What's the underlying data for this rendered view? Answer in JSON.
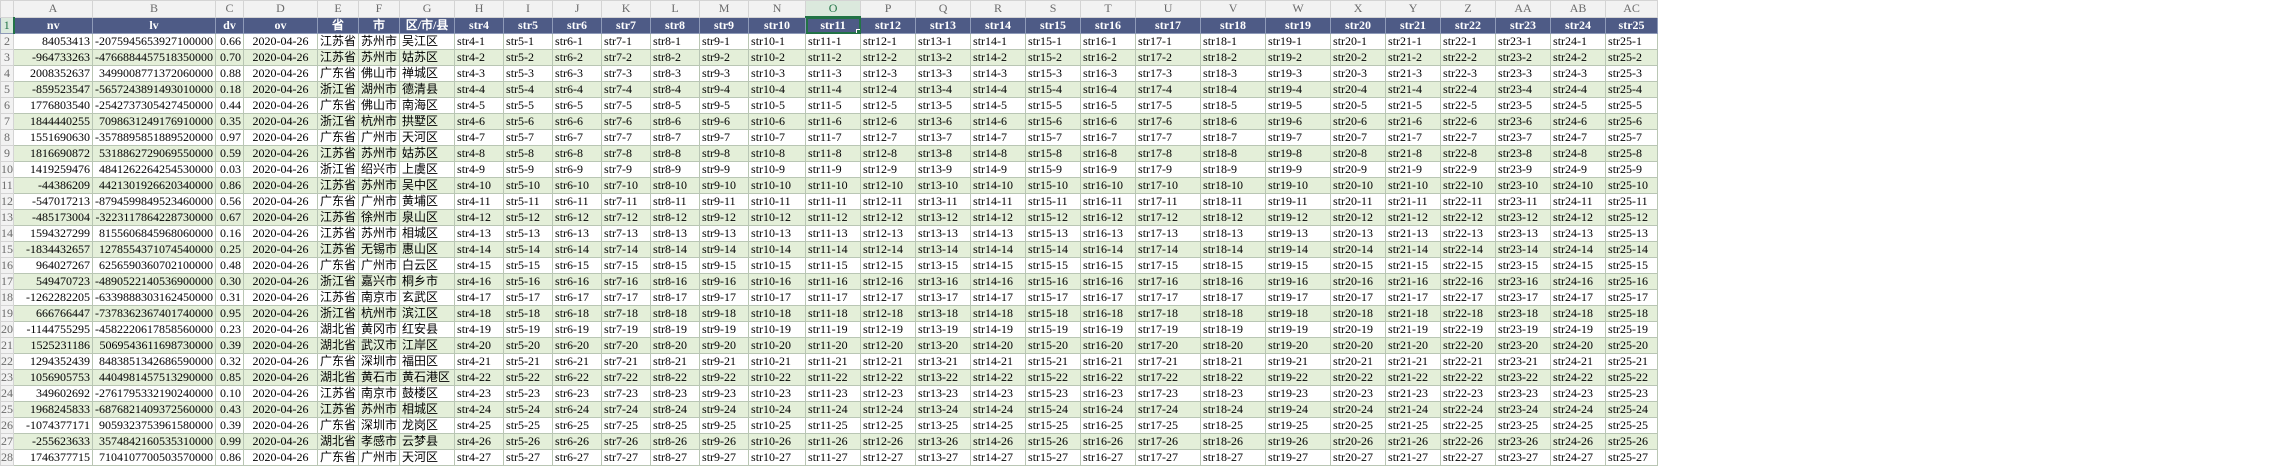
{
  "columns": [
    "A",
    "B",
    "C",
    "D",
    "E",
    "F",
    "G",
    "H",
    "I",
    "J",
    "K",
    "L",
    "M",
    "N",
    "O",
    "P",
    "Q",
    "R",
    "S",
    "T",
    "U",
    "V",
    "W",
    "X",
    "Y",
    "Z",
    "AA",
    "AB",
    "AC"
  ],
  "selected_column": "O",
  "headers": [
    "nv",
    "lv",
    "dv",
    "ov",
    "省",
    "市",
    "区/市/县",
    "str4",
    "str5",
    "str6",
    "str7",
    "str8",
    "str9",
    "str10",
    "str11",
    "str12",
    "str13",
    "str14",
    "str15",
    "str16",
    "str17",
    "str18",
    "str19",
    "str20",
    "str21",
    "str22",
    "str23",
    "str24",
    "str25"
  ],
  "rows": [
    [
      "84053413",
      "-2075945653927100000",
      "0.66",
      "2020-04-26",
      "江苏省",
      "苏州市",
      "吴江区"
    ],
    [
      "-964733263",
      "-4766884457518350000",
      "0.70",
      "2020-04-26",
      "江苏省",
      "苏州市",
      "姑苏区"
    ],
    [
      "2008352637",
      "3499008771372060000",
      "0.88",
      "2020-04-26",
      "广东省",
      "佛山市",
      "禅城区"
    ],
    [
      "-859523547",
      "-5657243891493010000",
      "0.18",
      "2020-04-26",
      "浙江省",
      "湖州市",
      "德清县"
    ],
    [
      "1776803540",
      "-2542737305427450000",
      "0.44",
      "2020-04-26",
      "广东省",
      "佛山市",
      "南海区"
    ],
    [
      "1844440255",
      "7098631249176910000",
      "0.35",
      "2020-04-26",
      "浙江省",
      "杭州市",
      "拱墅区"
    ],
    [
      "1551690630",
      "-3578895851889520000",
      "0.97",
      "2020-04-26",
      "广东省",
      "广州市",
      "天河区"
    ],
    [
      "1816690872",
      "5318862729069550000",
      "0.59",
      "2020-04-26",
      "江苏省",
      "苏州市",
      "姑苏区"
    ],
    [
      "1419259476",
      "4841262264254530000",
      "0.03",
      "2020-04-26",
      "浙江省",
      "绍兴市",
      "上虞区"
    ],
    [
      "-44386209",
      "4421301926620340000",
      "0.86",
      "2020-04-26",
      "江苏省",
      "苏州市",
      "吴中区"
    ],
    [
      "-547017213",
      "-8794599849523460000",
      "0.56",
      "2020-04-26",
      "广东省",
      "广州市",
      "黄埔区"
    ],
    [
      "-485173004",
      "-3223117864228730000",
      "0.67",
      "2020-04-26",
      "江苏省",
      "徐州市",
      "泉山区"
    ],
    [
      "1594327299",
      "8155606845968060000",
      "0.16",
      "2020-04-26",
      "江苏省",
      "苏州市",
      "相城区"
    ],
    [
      "-1834432657",
      "1278554371074540000",
      "0.25",
      "2020-04-26",
      "江苏省",
      "无锡市",
      "惠山区"
    ],
    [
      "964027267",
      "6256590360702100000",
      "0.48",
      "2020-04-26",
      "广东省",
      "广州市",
      "白云区"
    ],
    [
      "549470723",
      "-4890522140536900000",
      "0.30",
      "2020-04-26",
      "浙江省",
      "嘉兴市",
      "桐乡市"
    ],
    [
      "-1262282205",
      "-6339888303162450000",
      "0.31",
      "2020-04-26",
      "江苏省",
      "南京市",
      "玄武区"
    ],
    [
      "666766447",
      "-7378362367401740000",
      "0.95",
      "2020-04-26",
      "浙江省",
      "杭州市",
      "滨江区"
    ],
    [
      "-1144755295",
      "-4582220617858560000",
      "0.23",
      "2020-04-26",
      "湖北省",
      "黄冈市",
      "红安县"
    ],
    [
      "1525231186",
      "5069543611698730000",
      "0.39",
      "2020-04-26",
      "湖北省",
      "武汉市",
      "江岸区"
    ],
    [
      "1294352439",
      "8483851342686590000",
      "0.32",
      "2020-04-26",
      "广东省",
      "深圳市",
      "福田区"
    ],
    [
      "1056905753",
      "4404981457513290000",
      "0.85",
      "2020-04-26",
      "湖北省",
      "黄石市",
      "黄石港区"
    ],
    [
      "349602692",
      "-2761795332190240000",
      "0.10",
      "2020-04-26",
      "江苏省",
      "南京市",
      "鼓楼区"
    ],
    [
      "1968245833",
      "-6876821409372560000",
      "0.43",
      "2020-04-26",
      "江苏省",
      "苏州市",
      "相城区"
    ],
    [
      "-1074377171",
      "9059323753961580000",
      "0.39",
      "2020-04-26",
      "广东省",
      "深圳市",
      "龙岗区"
    ],
    [
      "-255623633",
      "3574842160535310000",
      "0.99",
      "2020-04-26",
      "湖北省",
      "孝感市",
      "云梦县"
    ],
    [
      "1746377715",
      "7104107700503570000",
      "0.86",
      "2020-04-26",
      "广东省",
      "广州市",
      "天河区"
    ]
  ]
}
